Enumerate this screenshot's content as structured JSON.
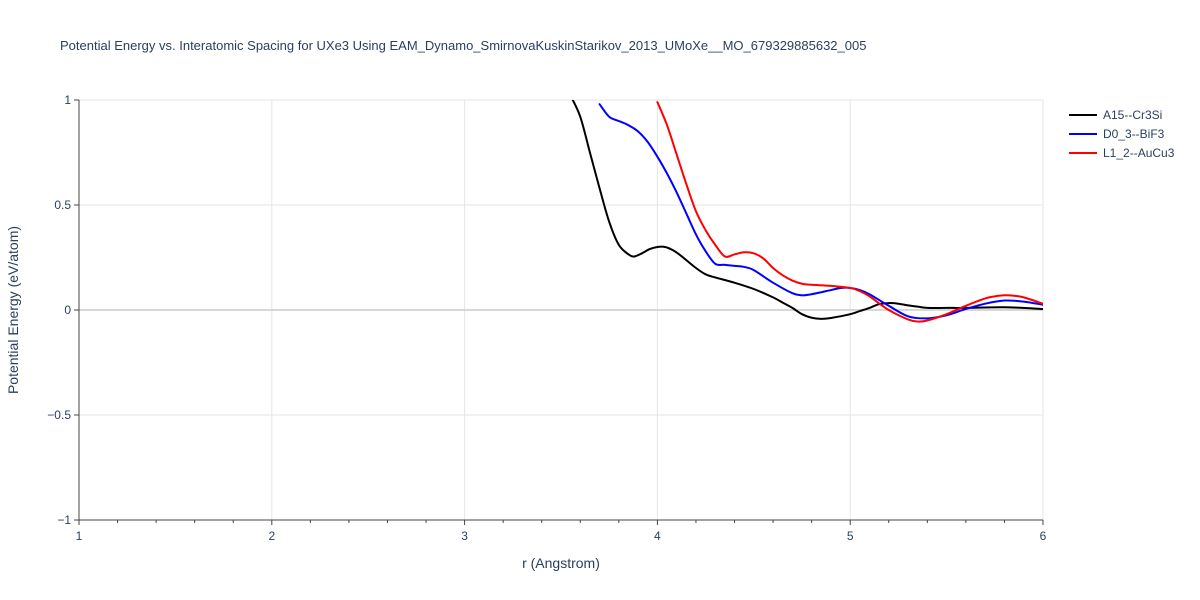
{
  "chart_data": {
    "type": "line",
    "title": "Potential Energy vs. Interatomic Spacing for UXe3 Using EAM_Dynamo_SmirnovaKuskinStarikov_2013_UMoXe__MO_679329885632_005",
    "xlabel": "r (Angstrom)",
    "ylabel": "Potential Energy (eV/atom)",
    "xlim": [
      1,
      6
    ],
    "ylim": [
      -1,
      1
    ],
    "xticks": [
      1,
      2,
      3,
      4,
      5,
      6
    ],
    "xtick_labels": [
      "1",
      "2",
      "3",
      "4",
      "5",
      "6"
    ],
    "yticks": [
      -1,
      -0.5,
      0,
      0.5,
      1
    ],
    "ytick_labels": [
      "−1",
      "−0.5",
      "0",
      "0.5",
      "1"
    ],
    "grid": true,
    "legend_position": "top-right",
    "series": [
      {
        "name": "A15--Cr3Si",
        "color": "#000000",
        "x": [
          3.55,
          3.6,
          3.65,
          3.7,
          3.75,
          3.8,
          3.85,
          3.88,
          3.92,
          3.96,
          4.0,
          4.04,
          4.08,
          4.12,
          4.2,
          4.25,
          4.3,
          4.4,
          4.5,
          4.6,
          4.65,
          4.7,
          4.75,
          4.8,
          4.85,
          4.9,
          5.0,
          5.05,
          5.1,
          5.15,
          5.2,
          5.25,
          5.3,
          5.35,
          5.4,
          5.5,
          5.6,
          5.8,
          6.0
        ],
        "y": [
          1.02,
          0.92,
          0.75,
          0.58,
          0.42,
          0.31,
          0.265,
          0.255,
          0.27,
          0.29,
          0.3,
          0.3,
          0.285,
          0.26,
          0.2,
          0.17,
          0.155,
          0.13,
          0.1,
          0.06,
          0.035,
          0.01,
          -0.02,
          -0.037,
          -0.042,
          -0.038,
          -0.02,
          -0.005,
          0.01,
          0.028,
          0.033,
          0.03,
          0.022,
          0.016,
          0.01,
          0.01,
          0.01,
          0.013,
          0.005
        ]
      },
      {
        "name": "D0_3--BiF3",
        "color": "#0000ff",
        "x": [
          3.7,
          3.75,
          3.8,
          3.85,
          3.9,
          3.95,
          4.0,
          4.05,
          4.1,
          4.15,
          4.2,
          4.25,
          4.3,
          4.35,
          4.4,
          4.45,
          4.5,
          4.6,
          4.7,
          4.75,
          4.8,
          4.9,
          4.95,
          5.0,
          5.05,
          5.1,
          5.2,
          5.3,
          5.4,
          5.5,
          5.6,
          5.7,
          5.8,
          5.9,
          6.0
        ],
        "y": [
          0.98,
          0.92,
          0.9,
          0.88,
          0.85,
          0.8,
          0.73,
          0.65,
          0.56,
          0.46,
          0.36,
          0.28,
          0.22,
          0.215,
          0.21,
          0.205,
          0.19,
          0.13,
          0.08,
          0.07,
          0.075,
          0.095,
          0.105,
          0.105,
          0.095,
          0.075,
          0.02,
          -0.03,
          -0.04,
          -0.025,
          0.005,
          0.03,
          0.045,
          0.04,
          0.025
        ]
      },
      {
        "name": "L1_2--AuCu3",
        "color": "#ff0000",
        "x": [
          4.0,
          4.05,
          4.1,
          4.15,
          4.2,
          4.25,
          4.3,
          4.35,
          4.4,
          4.45,
          4.5,
          4.55,
          4.6,
          4.65,
          4.7,
          4.75,
          4.8,
          4.9,
          5.0,
          5.05,
          5.1,
          5.2,
          5.3,
          5.35,
          5.4,
          5.5,
          5.6,
          5.7,
          5.75,
          5.8,
          5.85,
          5.9,
          6.0
        ],
        "y": [
          0.99,
          0.88,
          0.74,
          0.6,
          0.47,
          0.38,
          0.31,
          0.255,
          0.265,
          0.275,
          0.27,
          0.245,
          0.2,
          0.165,
          0.14,
          0.125,
          0.12,
          0.115,
          0.105,
          0.09,
          0.065,
          0.0,
          -0.045,
          -0.055,
          -0.05,
          -0.02,
          0.02,
          0.055,
          0.065,
          0.07,
          0.068,
          0.06,
          0.03
        ]
      }
    ]
  }
}
